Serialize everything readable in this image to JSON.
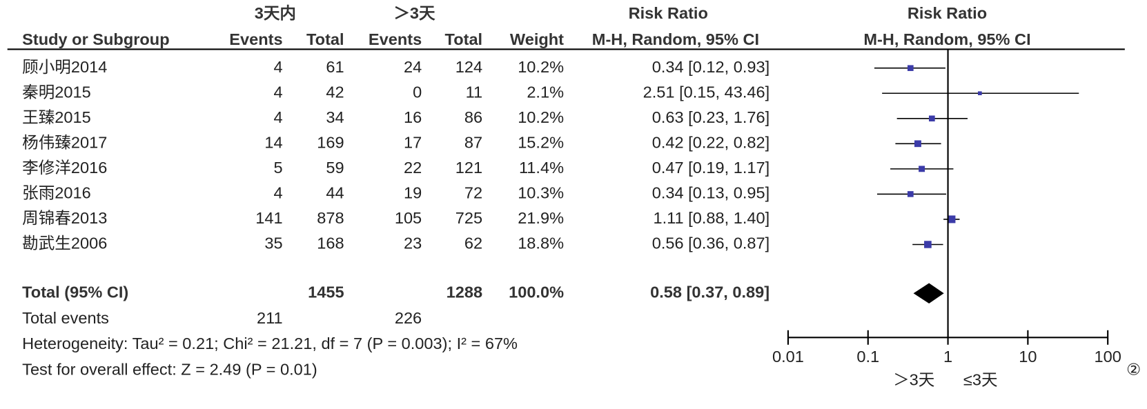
{
  "chart_data": {
    "type": "forest",
    "group_headers": [
      "3天内",
      "＞3天"
    ],
    "table_header": "Risk Ratio",
    "plot_header": "Risk Ratio",
    "columns": [
      "Study or Subgroup",
      "Events",
      "Total",
      "Events",
      "Total",
      "Weight",
      "M-H, Random, 95% CI"
    ],
    "plot_method": "M-H, Random, 95% CI",
    "studies": [
      {
        "name": "顾小明2014",
        "events1": 4,
        "total1": 61,
        "events2": 24,
        "total2": 124,
        "weight": 10.2,
        "weight_label": "10.2%",
        "rr": 0.34,
        "lo": 0.12,
        "hi": 0.93,
        "rr_label": "0.34 [0.12, 0.93]"
      },
      {
        "name": "秦明2015",
        "events1": 4,
        "total1": 42,
        "events2": 0,
        "total2": 11,
        "weight": 2.1,
        "weight_label": "2.1%",
        "rr": 2.51,
        "lo": 0.15,
        "hi": 43.46,
        "rr_label": "2.51 [0.15, 43.46]"
      },
      {
        "name": "王臻2015",
        "events1": 4,
        "total1": 34,
        "events2": 16,
        "total2": 86,
        "weight": 10.2,
        "weight_label": "10.2%",
        "rr": 0.63,
        "lo": 0.23,
        "hi": 1.76,
        "rr_label": "0.63 [0.23, 1.76]"
      },
      {
        "name": "杨伟臻2017",
        "events1": 14,
        "total1": 169,
        "events2": 17,
        "total2": 87,
        "weight": 15.2,
        "weight_label": "15.2%",
        "rr": 0.42,
        "lo": 0.22,
        "hi": 0.82,
        "rr_label": "0.42 [0.22, 0.82]"
      },
      {
        "name": "李修洋2016",
        "events1": 5,
        "total1": 59,
        "events2": 22,
        "total2": 121,
        "weight": 11.4,
        "weight_label": "11.4%",
        "rr": 0.47,
        "lo": 0.19,
        "hi": 1.17,
        "rr_label": "0.47 [0.19, 1.17]"
      },
      {
        "name": "张雨2016",
        "events1": 4,
        "total1": 44,
        "events2": 19,
        "total2": 72,
        "weight": 10.3,
        "weight_label": "10.3%",
        "rr": 0.34,
        "lo": 0.13,
        "hi": 0.95,
        "rr_label": "0.34 [0.13, 0.95]"
      },
      {
        "name": "周锦春2013",
        "events1": 141,
        "total1": 878,
        "events2": 105,
        "total2": 725,
        "weight": 21.9,
        "weight_label": "21.9%",
        "rr": 1.11,
        "lo": 0.88,
        "hi": 1.4,
        "rr_label": "1.11 [0.88, 1.40]"
      },
      {
        "name": "勘武生2006",
        "events1": 35,
        "total1": 168,
        "events2": 23,
        "total2": 62,
        "weight": 18.8,
        "weight_label": "18.8%",
        "rr": 0.56,
        "lo": 0.36,
        "hi": 0.87,
        "rr_label": "0.56 [0.36, 0.87]"
      }
    ],
    "total": {
      "name": "Total (95% CI)",
      "total1": 1455,
      "total2": 1288,
      "weight": 100.0,
      "weight_label": "100.0%",
      "rr": 0.58,
      "lo": 0.37,
      "hi": 0.89,
      "rr_label": "0.58 [0.37, 0.89]"
    },
    "total_events": {
      "name": "Total events",
      "events1": 211,
      "events2": 226
    },
    "heterogeneity": "Heterogeneity: Tau² = 0.21; Chi² = 21.21, df = 7 (P = 0.003); I² = 67%",
    "overall_effect": "Test for overall effect: Z = 2.49 (P = 0.01)",
    "xlim": [
      0.01,
      100
    ],
    "xticks": [
      0.01,
      0.1,
      1,
      10,
      100
    ],
    "log_scale": true,
    "favours": [
      "＞3天",
      "≤3天"
    ],
    "annotation": "②",
    "color": "#3b3ba8"
  }
}
